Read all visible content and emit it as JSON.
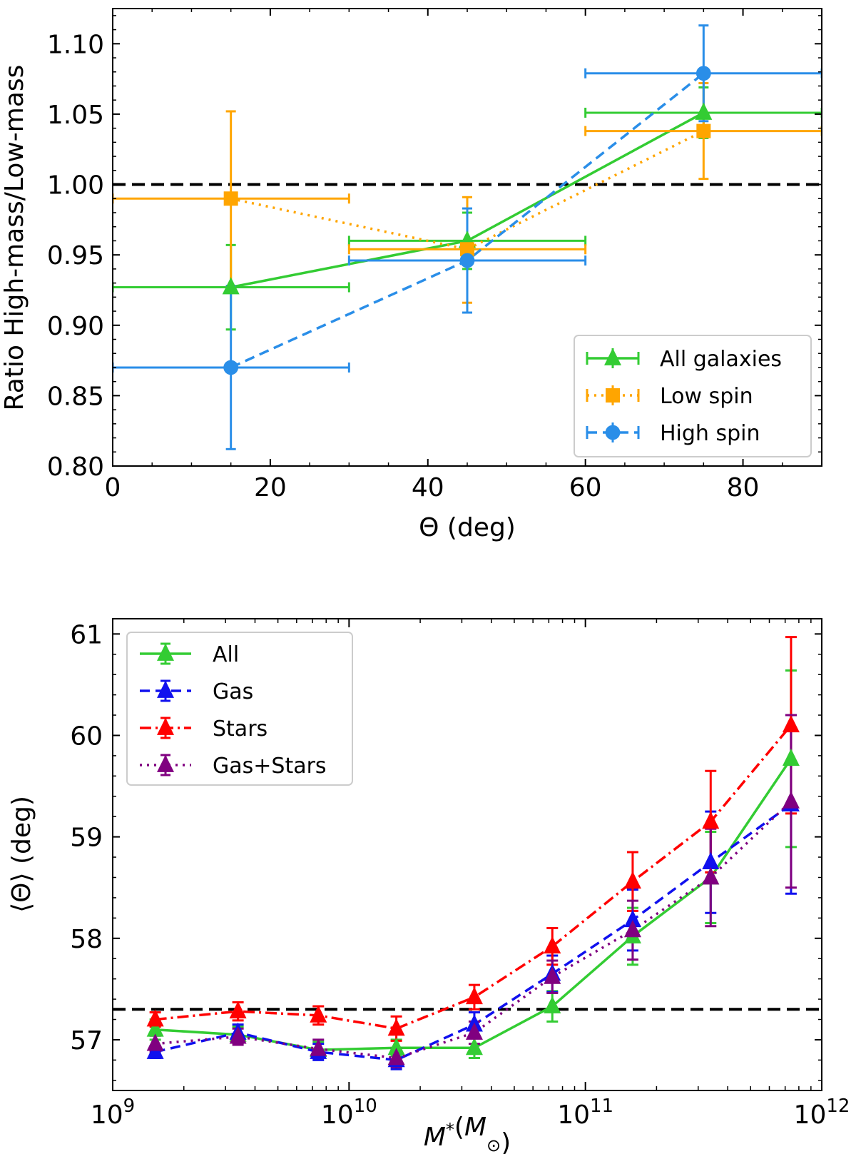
{
  "chart_data": [
    {
      "type": "line",
      "title": "",
      "xlabel": "Θ (deg)",
      "ylabel": "Ratio High-mass/Low-mass",
      "xlim": [
        0,
        90
      ],
      "ylim": [
        0.8,
        1.125
      ],
      "x_ticks": [
        0,
        20,
        40,
        60,
        80
      ],
      "x_tick_labels": [
        "0",
        "20",
        "40",
        "60",
        "80"
      ],
      "y_ticks": [
        0.8,
        0.85,
        0.9,
        0.95,
        1.0,
        1.05,
        1.1
      ],
      "y_tick_labels": [
        "0.80",
        "0.85",
        "0.90",
        "0.95",
        "1.00",
        "1.05",
        "1.10"
      ],
      "reference_line": 1.0,
      "legend_position": "lower-right",
      "series": [
        {
          "name": "All galaxies",
          "color": "#33cc33",
          "linestyle": "solid",
          "marker": "triangle",
          "x": [
            15,
            45,
            75
          ],
          "xerr": [
            15,
            15,
            15
          ],
          "y": [
            0.927,
            0.96,
            1.051
          ],
          "yerr_low": [
            0.03,
            0.02,
            0.018
          ],
          "yerr_high": [
            0.03,
            0.02,
            0.018
          ]
        },
        {
          "name": "Low spin",
          "color": "#ffa500",
          "linestyle": "dotted",
          "marker": "square",
          "x": [
            15,
            45,
            75
          ],
          "xerr": [
            15,
            15,
            15
          ],
          "y": [
            0.99,
            0.954,
            1.038
          ],
          "yerr_low": [
            0.062,
            0.038,
            0.034
          ],
          "yerr_high": [
            0.062,
            0.037,
            0.034
          ]
        },
        {
          "name": "High spin",
          "color": "#2a8ee8",
          "linestyle": "dashed",
          "marker": "circle",
          "x": [
            15,
            45,
            75
          ],
          "xerr": [
            15,
            15,
            15
          ],
          "y": [
            0.87,
            0.946,
            1.079
          ],
          "yerr_low": [
            0.058,
            0.037,
            0.034
          ],
          "yerr_high": [
            0.058,
            0.037,
            0.034
          ]
        }
      ]
    },
    {
      "type": "line",
      "title": "",
      "xlabel": "M*(M⊙)",
      "ylabel": "⟨Θ⟩ (deg)",
      "xscale": "log",
      "xlim_log10": [
        9,
        12
      ],
      "ylim": [
        56.5,
        61.15
      ],
      "x_ticks_log10": [
        9,
        10,
        11,
        12
      ],
      "x_tick_base": "10",
      "x_tick_exponents": [
        "9",
        "10",
        "11",
        "12"
      ],
      "y_ticks": [
        57,
        58,
        59,
        60,
        61
      ],
      "y_tick_labels": [
        "57",
        "58",
        "59",
        "60",
        "61"
      ],
      "reference_line": 57.3,
      "legend_position": "upper-left",
      "x_log10": [
        9.18,
        9.53,
        9.87,
        10.2,
        10.53,
        10.86,
        11.2,
        11.53,
        11.87
      ],
      "series": [
        {
          "name": "All",
          "color": "#33cc33",
          "linestyle": "solid",
          "marker": "triangle",
          "y": [
            57.1,
            57.05,
            56.9,
            56.92,
            56.92,
            57.33,
            58.02,
            58.6,
            59.77
          ],
          "yerr": [
            0.1,
            0.08,
            0.08,
            0.08,
            0.1,
            0.15,
            0.28,
            0.45,
            0.87
          ]
        },
        {
          "name": "Gas",
          "color": "#1010ee",
          "linestyle": "dashed",
          "marker": "triangle",
          "y": [
            56.88,
            57.07,
            56.88,
            56.8,
            57.15,
            57.65,
            58.18,
            58.75,
            59.32
          ],
          "yerr": [
            0.06,
            0.08,
            0.08,
            0.09,
            0.12,
            0.18,
            0.3,
            0.5,
            0.88
          ]
        },
        {
          "name": "Stars",
          "color": "#ff0000",
          "linestyle": "dashdot",
          "marker": "triangle",
          "y": [
            57.2,
            57.28,
            57.24,
            57.11,
            57.42,
            57.92,
            58.56,
            59.15,
            60.1
          ],
          "yerr": [
            0.07,
            0.09,
            0.09,
            0.12,
            0.12,
            0.18,
            0.29,
            0.5,
            0.87
          ]
        },
        {
          "name": "Gas+Stars",
          "color": "#800080",
          "linestyle": "dotted",
          "marker": "triangle",
          "y": [
            56.96,
            57.03,
            56.91,
            56.82,
            57.07,
            57.62,
            58.08,
            58.6,
            59.35
          ],
          "yerr": [
            0.08,
            0.08,
            0.09,
            0.09,
            0.11,
            0.16,
            0.29,
            0.48,
            0.85
          ]
        }
      ]
    }
  ]
}
